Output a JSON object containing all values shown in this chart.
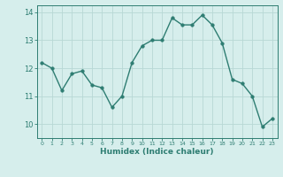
{
  "x": [
    0,
    1,
    2,
    3,
    4,
    5,
    6,
    7,
    8,
    9,
    10,
    11,
    12,
    13,
    14,
    15,
    16,
    17,
    18,
    19,
    20,
    21,
    22,
    23
  ],
  "y": [
    12.2,
    12.0,
    11.2,
    11.8,
    11.9,
    11.4,
    11.3,
    10.6,
    11.0,
    12.2,
    12.8,
    13.0,
    13.0,
    13.8,
    13.55,
    13.55,
    13.9,
    13.55,
    12.9,
    11.6,
    11.45,
    11.0,
    9.9,
    10.2
  ],
  "xlabel": "Humidex (Indice chaleur)",
  "ylim": [
    9.5,
    14.25
  ],
  "xlim": [
    -0.5,
    23.5
  ],
  "yticks": [
    10,
    11,
    12,
    13,
    14
  ],
  "xticks": [
    0,
    1,
    2,
    3,
    4,
    5,
    6,
    7,
    8,
    9,
    10,
    11,
    12,
    13,
    14,
    15,
    16,
    17,
    18,
    19,
    20,
    21,
    22,
    23
  ],
  "line_color": "#2e7d72",
  "marker_color": "#2e7d72",
  "bg_color": "#d6eeec",
  "grid_color": "#b8d8d5",
  "axis_color": "#2e7d72",
  "tick_label_color": "#2e7d72",
  "xlabel_color": "#2e7d72",
  "marker_size": 2.5,
  "line_width": 1.0
}
